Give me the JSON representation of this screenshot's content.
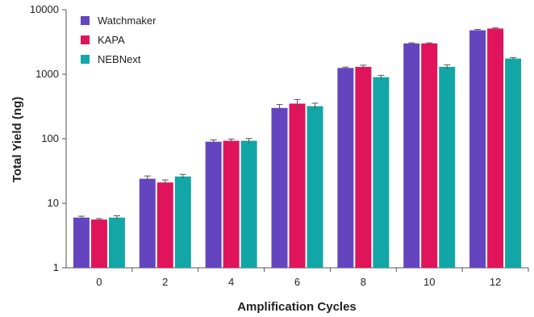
{
  "chart_data": {
    "type": "bar",
    "categories": [
      "0",
      "2",
      "4",
      "6",
      "8",
      "10",
      "12"
    ],
    "series": [
      {
        "name": "Watchmaker",
        "color": "#6445bf",
        "values": [
          6,
          24,
          90,
          300,
          1250,
          3000,
          4800
        ],
        "errors": [
          0.3,
          2.5,
          6,
          40,
          40,
          60,
          150
        ]
      },
      {
        "name": "KAPA",
        "color": "#e0145a",
        "values": [
          5.6,
          21,
          93,
          350,
          1300,
          3000,
          5100
        ],
        "errors": [
          0.2,
          2,
          6,
          55,
          80,
          60,
          120
        ]
      },
      {
        "name": "NEBNext",
        "color": "#13a6a6",
        "values": [
          6,
          26,
          93,
          320,
          900,
          1300,
          1750
        ],
        "errors": [
          0.4,
          2,
          8,
          35,
          60,
          100,
          60
        ]
      }
    ],
    "xlabel": "Amplification Cycles",
    "ylabel": "Total Yield (ng)",
    "yscale": "log",
    "ylim": [
      1,
      10000
    ],
    "yticks": [
      "1",
      "10",
      "100",
      "1000",
      "10000"
    ],
    "grid": false,
    "legend_position": "top-left"
  }
}
